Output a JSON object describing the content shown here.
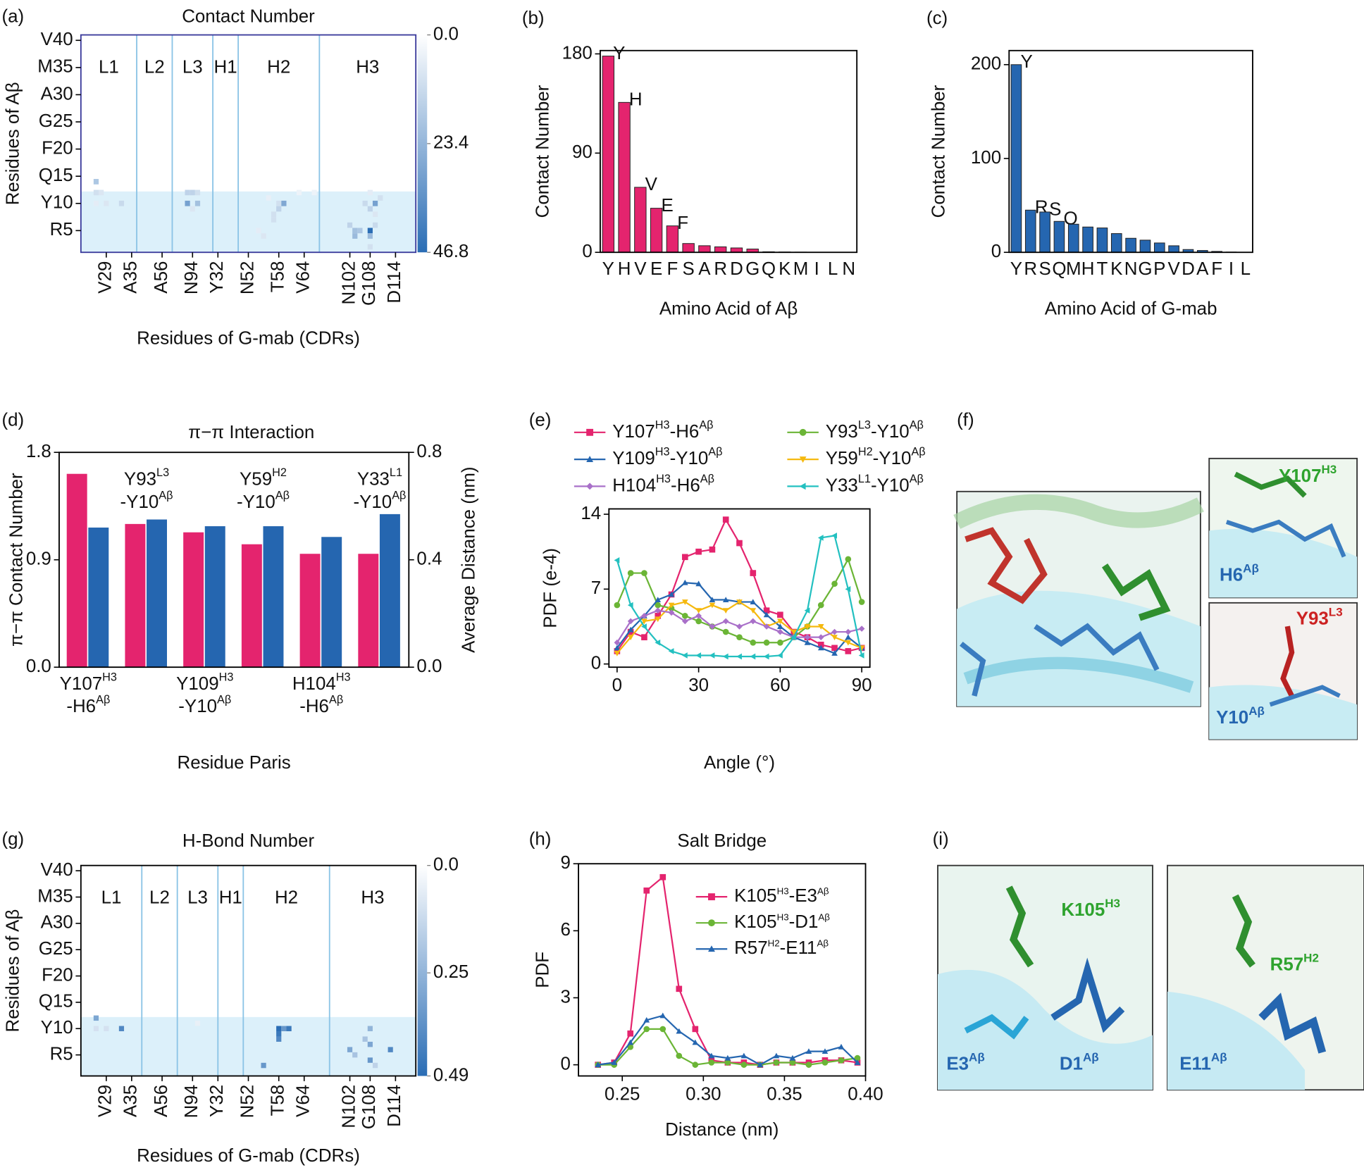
{
  "chart_data": [
    {
      "type": "heatmap",
      "panel": "(a)",
      "title": "Contact Number",
      "xlabel": "Residues of G-mab (CDRs)",
      "ylabel": "Residues of Aβ",
      "xlim": [
        0,
        66
      ],
      "xticks": [
        {
          "value": 5,
          "label": "V29"
        },
        {
          "value": 10,
          "label": "A35"
        },
        {
          "value": 16,
          "label": "A56"
        },
        {
          "value": 22,
          "label": "N94"
        },
        {
          "value": 27,
          "label": "Y32"
        },
        {
          "value": 33,
          "label": "N52"
        },
        {
          "value": 39,
          "label": "T58"
        },
        {
          "value": 44,
          "label": "V64"
        },
        {
          "value": 53,
          "label": "N102"
        },
        {
          "value": 57,
          "label": "G108"
        },
        {
          "value": 62,
          "label": "D114"
        }
      ],
      "ylim": [
        1,
        41
      ],
      "yticks": [
        {
          "value": 40,
          "label": "V40"
        },
        {
          "value": 35,
          "label": "M35"
        },
        {
          "value": 30,
          "label": "A30"
        },
        {
          "value": 25,
          "label": "G25"
        },
        {
          "value": 20,
          "label": "F20"
        },
        {
          "value": 15,
          "label": "Q15"
        },
        {
          "value": 10,
          "label": "Y10"
        },
        {
          "value": 5,
          "label": "R5"
        }
      ],
      "regions": [
        {
          "label": "L1",
          "start": 0,
          "end": 11
        },
        {
          "label": "L2",
          "start": 11,
          "end": 18
        },
        {
          "label": "L3",
          "start": 18,
          "end": 26
        },
        {
          "label": "H1",
          "start": 26,
          "end": 31
        },
        {
          "label": "H2",
          "start": 31,
          "end": 47
        },
        {
          "label": "H3",
          "start": 47,
          "end": 66
        }
      ],
      "shade_ylim": [
        1,
        12.2
      ],
      "shade_color": "#dcf0fa",
      "frame_color": "#3b3b9c",
      "divider_color": "#8cc4e6",
      "clim": [
        0,
        46.8
      ],
      "cticks": [
        {
          "value": 0,
          "label": "0.0"
        },
        23.4,
        46.8
      ],
      "cmap": [
        "#ffffff",
        "#2a6db5"
      ],
      "cells": [
        [
          3,
          14,
          18
        ],
        [
          3,
          12,
          10
        ],
        [
          4,
          12,
          8
        ],
        [
          3,
          10,
          6
        ],
        [
          5,
          10,
          8
        ],
        [
          8,
          10,
          12
        ],
        [
          21,
          12,
          14
        ],
        [
          22,
          12,
          14
        ],
        [
          23,
          12,
          10
        ],
        [
          21,
          10,
          30
        ],
        [
          23,
          10,
          20
        ],
        [
          22,
          9,
          8
        ],
        [
          37,
          11,
          5
        ],
        [
          39,
          10,
          10
        ],
        [
          40,
          10,
          28
        ],
        [
          39,
          9,
          14
        ],
        [
          38,
          8,
          10
        ],
        [
          38,
          7,
          10
        ],
        [
          35,
          5,
          6
        ],
        [
          36,
          4,
          8
        ],
        [
          43,
          12,
          4
        ],
        [
          46,
          12,
          4
        ],
        [
          53,
          6,
          14
        ],
        [
          54,
          5,
          20
        ],
        [
          55,
          5,
          18
        ],
        [
          54,
          4,
          22
        ],
        [
          57,
          5,
          46.8
        ],
        [
          57,
          4,
          22
        ],
        [
          58,
          6,
          12
        ],
        [
          56,
          10,
          12
        ],
        [
          58,
          10,
          30
        ],
        [
          57,
          9,
          14
        ],
        [
          58,
          8,
          8
        ],
        [
          57,
          2,
          10
        ],
        [
          59,
          11,
          10
        ],
        [
          57,
          12,
          6
        ]
      ]
    },
    {
      "type": "bar",
      "panel": "(b)",
      "xlabel": "Amino Acid of Aβ",
      "ylabel": "Contact Number",
      "color": "#e4246e",
      "categories": [
        "Y",
        "H",
        "V",
        "E",
        "F",
        "S",
        "A",
        "R",
        "D",
        "G",
        "Q",
        "K",
        "M",
        "I",
        "L",
        "N"
      ],
      "values": [
        178,
        136,
        59,
        40,
        24,
        8,
        6,
        5,
        4,
        3,
        0.5,
        0.3,
        0.2,
        0.1,
        0,
        0
      ],
      "bar_labels": [
        "Y",
        "H",
        "V",
        "E",
        "F",
        null,
        null,
        null,
        null,
        null,
        null,
        null,
        null,
        null,
        null,
        null
      ],
      "ylim": [
        0,
        183
      ],
      "yticks": [
        0,
        90,
        180
      ]
    },
    {
      "type": "bar",
      "panel": "(c)",
      "xlabel": "Amino Acid of G-mab",
      "ylabel": "Contact Number",
      "color": "#2566b0",
      "categories": [
        "Y",
        "R",
        "S",
        "Q",
        "M",
        "H",
        "T",
        "K",
        "N",
        "G",
        "P",
        "V",
        "D",
        "A",
        "F",
        "I",
        "L"
      ],
      "values": [
        200,
        45,
        43,
        33,
        30,
        27,
        26,
        20,
        15,
        13,
        10,
        7,
        3,
        2,
        1,
        0.3,
        0
      ],
      "bar_labels": [
        "Y",
        "R",
        "S",
        "Q",
        null,
        null,
        null,
        null,
        null,
        null,
        null,
        null,
        null,
        null,
        null,
        null,
        null
      ],
      "ylim": [
        0,
        215
      ],
      "yticks": [
        0,
        100,
        200
      ]
    },
    {
      "type": "dualbar",
      "panel": "(d)",
      "title": "π−π Interaction",
      "xlabel": "Residue Paris",
      "ylabel": "π−π Contact Number",
      "y2label": "Average Distance (nm)",
      "categories": [
        [
          "Y107",
          "H3",
          "-H6",
          "Aβ"
        ],
        [
          "Y93",
          "L3",
          "-Y10",
          "Aβ"
        ],
        [
          "Y109",
          "H3",
          "-Y10",
          "Aβ"
        ],
        [
          "Y59",
          "H2",
          "-Y10",
          "Aβ"
        ],
        [
          "H104",
          "H3",
          "-H6",
          "Aβ"
        ],
        [
          "Y33",
          "L1",
          "-Y10",
          "Aβ"
        ]
      ],
      "series": [
        {
          "name": "Contact Number",
          "color": "#e4246e",
          "values": [
            1.62,
            1.2,
            1.13,
            1.03,
            0.95,
            0.95
          ]
        },
        {
          "name": "Average Distance",
          "color": "#2566b0",
          "axis": "y2",
          "values": [
            0.52,
            0.55,
            0.525,
            0.525,
            0.485,
            0.57
          ]
        }
      ],
      "ylim": [
        0,
        1.8
      ],
      "yticks": [
        {
          "value": 0,
          "label": "0.0"
        },
        0.9,
        1.8
      ],
      "y2lim": [
        0,
        0.8
      ],
      "y2ticks": [
        {
          "value": 0,
          "label": "0.0"
        },
        0.4,
        0.8
      ]
    },
    {
      "type": "line",
      "panel": "(e)",
      "xlabel": "Angle (°)",
      "ylabel": "PDF (e-4)",
      "legend": "top",
      "x": [
        0,
        5,
        10,
        15,
        20,
        25,
        30,
        35,
        40,
        45,
        50,
        55,
        60,
        65,
        70,
        75,
        80,
        85,
        90
      ],
      "xlim": [
        -3,
        93
      ],
      "xticks": [
        0,
        30,
        60,
        90
      ],
      "ylim": [
        -0.3,
        14.5
      ],
      "yticks": [
        0,
        7,
        14
      ],
      "series": [
        {
          "name": [
            "Y107",
            "H3",
            "-H6",
            "Aβ"
          ],
          "color": "#e4246e",
          "marker": "square",
          "values": [
            1.2,
            3.0,
            2.5,
            4.5,
            6.5,
            10.0,
            10.5,
            10.7,
            13.5,
            11.3,
            8.5,
            5.0,
            4.6,
            3.0,
            2.5,
            1.8,
            1.5,
            1.2,
            1.5
          ]
        },
        {
          "name": [
            "Y93",
            "L3",
            "-Y10",
            "Aβ"
          ],
          "color": "#6bb536",
          "marker": "circle",
          "values": [
            5.5,
            8.5,
            8.5,
            5.5,
            5.2,
            4.5,
            4.0,
            3.5,
            3.0,
            2.5,
            2.0,
            2.0,
            2.0,
            2.5,
            3.5,
            5.5,
            7.5,
            9.8,
            5.8
          ]
        },
        {
          "name": [
            "Y109",
            "H3",
            "-Y10",
            "Aβ"
          ],
          "color": "#2566b0",
          "marker": "triangle",
          "values": [
            1.5,
            3.2,
            4.5,
            6.0,
            6.5,
            7.6,
            7.5,
            6.0,
            6.0,
            5.8,
            5.8,
            4.6,
            3.5,
            2.5,
            2.0,
            1.5,
            1.0,
            2.5,
            1.5
          ]
        },
        {
          "name": [
            "Y59",
            "H2",
            "-Y10",
            "Aβ"
          ],
          "color": "#f5b90f",
          "marker": "triangle-down",
          "values": [
            1.0,
            2.5,
            4.0,
            4.2,
            5.5,
            5.8,
            5.0,
            5.5,
            5.0,
            5.8,
            5.0,
            3.5,
            4.0,
            3.0,
            3.5,
            3.5,
            2.5,
            2.0,
            1.5
          ]
        },
        {
          "name": [
            "H104",
            "H3",
            "-H6",
            "Aβ"
          ],
          "color": "#a970c9",
          "marker": "diamond",
          "values": [
            2.0,
            4.0,
            4.5,
            5.0,
            4.8,
            4.0,
            4.5,
            3.5,
            4.0,
            3.5,
            4.0,
            3.5,
            3.0,
            2.5,
            2.5,
            2.5,
            3.0,
            3.0,
            3.3
          ]
        },
        {
          "name": [
            "Y33",
            "L1",
            "-Y10",
            "Aβ"
          ],
          "color": "#23c0c0",
          "marker": "triangle-left",
          "values": [
            9.7,
            5.5,
            3.5,
            2.0,
            1.2,
            0.8,
            0.8,
            0.8,
            0.7,
            0.7,
            0.7,
            0.7,
            0.8,
            2.5,
            5.0,
            11.8,
            12.0,
            7.0,
            0.8
          ]
        }
      ]
    },
    {
      "type": "heatmap",
      "panel": "(g)",
      "title": "H-Bond Number",
      "xlabel": "Residues of G-mab (CDRs)",
      "ylabel": "Residues of Aβ",
      "xlim": [
        0,
        66
      ],
      "xticks": [
        {
          "value": 5,
          "label": "V29"
        },
        {
          "value": 10,
          "label": "A35"
        },
        {
          "value": 16,
          "label": "A56"
        },
        {
          "value": 22,
          "label": "N94"
        },
        {
          "value": 27,
          "label": "Y32"
        },
        {
          "value": 33,
          "label": "N52"
        },
        {
          "value": 39,
          "label": "T58"
        },
        {
          "value": 44,
          "label": "V64"
        },
        {
          "value": 53,
          "label": "N102"
        },
        {
          "value": 57,
          "label": "G108"
        },
        {
          "value": 62,
          "label": "D114"
        }
      ],
      "ylim": [
        1,
        41
      ],
      "yticks": [
        {
          "value": 40,
          "label": "V40"
        },
        {
          "value": 35,
          "label": "M35"
        },
        {
          "value": 30,
          "label": "A30"
        },
        {
          "value": 25,
          "label": "G25"
        },
        {
          "value": 20,
          "label": "F20"
        },
        {
          "value": 15,
          "label": "Q15"
        },
        {
          "value": 10,
          "label": "Y10"
        },
        {
          "value": 5,
          "label": "R5"
        }
      ],
      "regions": [
        {
          "label": "L1",
          "start": 0,
          "end": 12
        },
        {
          "label": "L2",
          "start": 12,
          "end": 19
        },
        {
          "label": "L3",
          "start": 19,
          "end": 27
        },
        {
          "label": "H1",
          "start": 27,
          "end": 32
        },
        {
          "label": "H2",
          "start": 32,
          "end": 49
        },
        {
          "label": "H3",
          "start": 49,
          "end": 66
        }
      ],
      "shade_ylim": [
        1,
        12.2
      ],
      "shade_color": "#dcf0fa",
      "frame_color": "#000000",
      "divider_color": "#8cc4e6",
      "clim": [
        0,
        0.49
      ],
      "cticks": [
        {
          "value": 0,
          "label": "0.0"
        },
        0.25,
        0.49
      ],
      "cmap": [
        "#ffffff",
        "#2a6db5"
      ],
      "cells": [
        [
          3,
          12,
          0.3
        ],
        [
          3,
          10,
          0.1
        ],
        [
          5,
          10,
          0.1
        ],
        [
          8,
          10,
          0.4
        ],
        [
          23,
          11,
          0.05
        ],
        [
          39,
          10,
          0.49
        ],
        [
          39,
          9,
          0.45
        ],
        [
          39,
          8,
          0.4
        ],
        [
          40,
          10,
          0.35
        ],
        [
          41,
          10,
          0.45
        ],
        [
          36,
          3,
          0.35
        ],
        [
          53,
          6,
          0.3
        ],
        [
          54,
          5,
          0.2
        ],
        [
          56,
          8,
          0.2
        ],
        [
          57,
          10,
          0.25
        ],
        [
          57,
          7,
          0.3
        ],
        [
          57,
          4,
          0.35
        ],
        [
          58,
          3,
          0.15
        ],
        [
          61,
          6,
          0.4
        ]
      ]
    },
    {
      "type": "line",
      "panel": "(h)",
      "title": "Salt Bridge",
      "xlabel": "Distance (nm)",
      "ylabel": "PDF",
      "legend": "upper right",
      "x": [
        0.235,
        0.245,
        0.255,
        0.265,
        0.275,
        0.285,
        0.295,
        0.305,
        0.315,
        0.325,
        0.335,
        0.345,
        0.355,
        0.365,
        0.375,
        0.385,
        0.395
      ],
      "xlim": [
        0.223,
        0.4
      ],
      "xticks": [
        0.25,
        {
          "value": 0.3,
          "label": "0.30"
        },
        0.35,
        {
          "value": 0.4,
          "label": "0.40"
        }
      ],
      "ylim": [
        -0.5,
        9
      ],
      "yticks": [
        0,
        3,
        6,
        9
      ],
      "series": [
        {
          "name": [
            "K105",
            "H3",
            "-E3",
            "Aβ"
          ],
          "color": "#e4246e",
          "marker": "square",
          "values": [
            0,
            0.1,
            1.4,
            7.8,
            8.4,
            3.4,
            1.6,
            0.2,
            0.1,
            0.1,
            0.0,
            0.1,
            0.1,
            0.1,
            0.2,
            0.2,
            0.1
          ]
        },
        {
          "name": [
            "K105",
            "H3",
            "-D1",
            "Aβ"
          ],
          "color": "#6bb536",
          "marker": "circle",
          "values": [
            0,
            0,
            0.8,
            1.6,
            1.6,
            0.4,
            0.0,
            0.1,
            0.1,
            0.0,
            0.0,
            0.1,
            0.1,
            0.0,
            0.1,
            0.2,
            0.3
          ]
        },
        {
          "name": [
            "R57",
            "H2",
            "-E11",
            "Aβ"
          ],
          "color": "#2566b0",
          "marker": "triangle",
          "values": [
            0,
            0.1,
            1.0,
            2.0,
            2.2,
            1.5,
            1.0,
            0.4,
            0.3,
            0.4,
            0.0,
            0.4,
            0.3,
            0.6,
            0.6,
            0.8,
            0.1
          ]
        }
      ]
    }
  ],
  "figures": [
    {
      "panel": "(f)",
      "labels": [
        {
          "parts": [
            "Y107",
            "H3"
          ],
          "color": "#2ea32e"
        },
        {
          "parts": [
            "H6",
            "Aβ"
          ],
          "color": "#2566b0"
        },
        {
          "parts": [
            "Y93",
            "L3"
          ],
          "color": "#cc2222"
        },
        {
          "parts": [
            "Y10",
            "Aβ"
          ],
          "color": "#2566b0"
        }
      ]
    },
    {
      "panel": "(i)",
      "labels": [
        {
          "parts": [
            "K105",
            "H3"
          ],
          "color": "#2ea32e"
        },
        {
          "parts": [
            "E3",
            "Aβ"
          ],
          "color": "#2566b0"
        },
        {
          "parts": [
            "D1",
            "Aβ"
          ],
          "color": "#2566b0"
        },
        {
          "parts": [
            "R57",
            "H2"
          ],
          "color": "#2ea32e"
        },
        {
          "parts": [
            "E11",
            "Aβ"
          ],
          "color": "#2566b0"
        }
      ]
    }
  ]
}
